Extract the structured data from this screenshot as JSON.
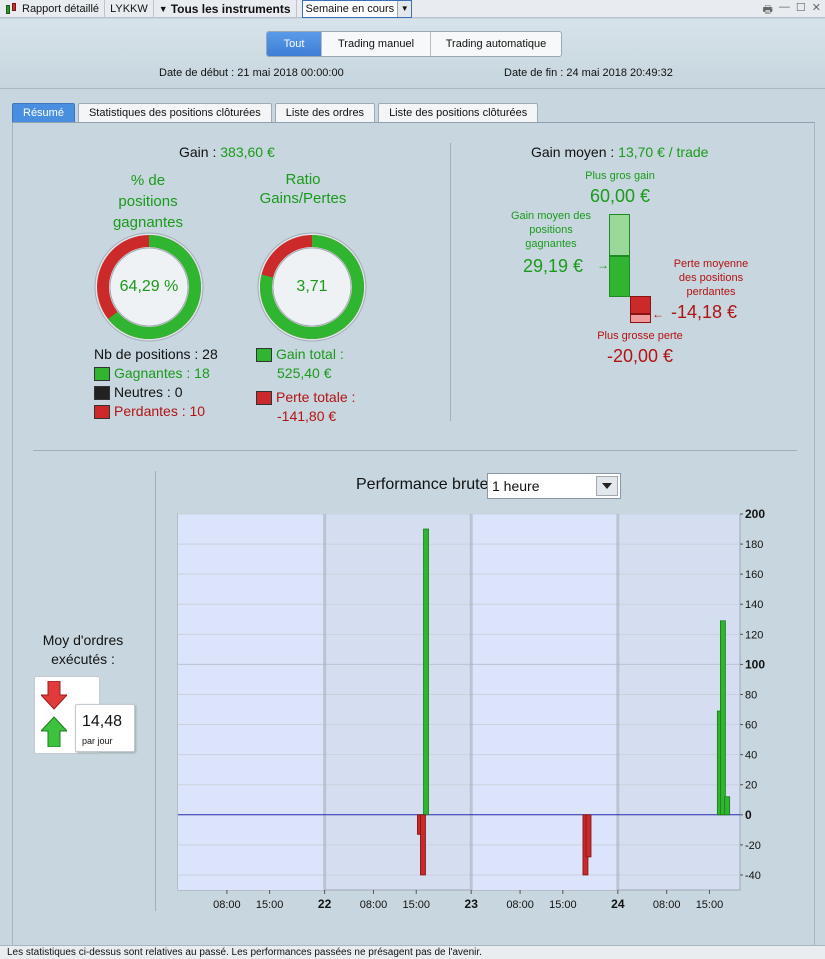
{
  "toolbar": {
    "report_label": "Rapport détaillé",
    "account": "LYKKW",
    "instruments_label": "Tous les instruments",
    "period_value": "Semaine en cours"
  },
  "filter": {
    "segments": [
      "Tout",
      "Trading manuel",
      "Trading automatique"
    ],
    "active_segment": "Tout",
    "start_label": "Date de début :",
    "start_value": "21 mai 2018 00:00:00",
    "end_label": "Date de fin :",
    "end_value": "24 mai 2018 20:49:32"
  },
  "tabs": [
    "Résumé",
    "Statistiques des positions clôturées",
    "Liste des ordres",
    "Liste des positions clôturées"
  ],
  "summary": {
    "gain_label": "Gain :",
    "gain_value": "383,60 €",
    "pct_title": "% de positions gagnantes",
    "pct_value": "64,29 %",
    "pct_fraction": 0.6429,
    "ratio_title": "Ratio Gains/Pertes",
    "ratio_value": "3,71",
    "ratio_green_fraction": 0.787,
    "nb_positions_label": "Nb de positions : 28",
    "gagnantes_label": "Gagnantes : 18",
    "neutres_label": "Neutres : 0",
    "perdantes_label": "Perdantes : 10",
    "gain_total_label": "Gain total :",
    "gain_total_value": "525,40 €",
    "perte_totale_label": "Perte totale :",
    "perte_totale_value": "-141,80 €",
    "colors": {
      "green": "#1a9a1a",
      "red": "#b21212"
    }
  },
  "gain_moyen": {
    "label": "Gain moyen :",
    "value": "13,70 € / trade",
    "max_gain_label": "Plus gros gain",
    "max_gain_value": "60,00 €",
    "avg_win_label_lines": [
      "Gain moyen des",
      "positions",
      "gagnantes"
    ],
    "avg_win_value": "29,19 €",
    "avg_loss_label_lines": [
      "Perte moyenne",
      "des positions",
      "perdantes"
    ],
    "avg_loss_value": "-14,18 €",
    "max_loss_label": "Plus grosse perte",
    "max_loss_value": "-20,00 €"
  },
  "orders": {
    "label_lines": [
      "Moy d'ordres",
      "exécutés :"
    ],
    "value": "14,48",
    "unit": "par jour"
  },
  "performance": {
    "label": "Performance brute",
    "interval_value": "1 heure"
  },
  "chart_data": {
    "type": "bar",
    "ylim": [
      -50,
      200
    ],
    "y_ticks": [
      200,
      180,
      160,
      140,
      120,
      100,
      80,
      60,
      40,
      20,
      0,
      -20,
      -40
    ],
    "x_tick_labels": [
      "08:00",
      "15:00",
      "22",
      "08:00",
      "15:00",
      "23",
      "08:00",
      "15:00",
      "24",
      "08:00",
      "15:00"
    ],
    "x_tick_hours": [
      8,
      15,
      24,
      32,
      39,
      48,
      56,
      63,
      72,
      80,
      87
    ],
    "x_range_hours": [
      0,
      92
    ],
    "bars": [
      {
        "hour": 40.6,
        "value": 190
      },
      {
        "hour": 39.6,
        "value": -13
      },
      {
        "hour": 40.1,
        "value": -40
      },
      {
        "hour": 66.7,
        "value": -40
      },
      {
        "hour": 67.2,
        "value": -28
      },
      {
        "hour": 88.7,
        "value": 69
      },
      {
        "hour": 89.2,
        "value": 129
      },
      {
        "hour": 89.9,
        "value": 12
      }
    ]
  },
  "status_text": "Les statistiques ci-dessus sont relatives au passé. Les performances passées ne présagent pas de l'avenir."
}
